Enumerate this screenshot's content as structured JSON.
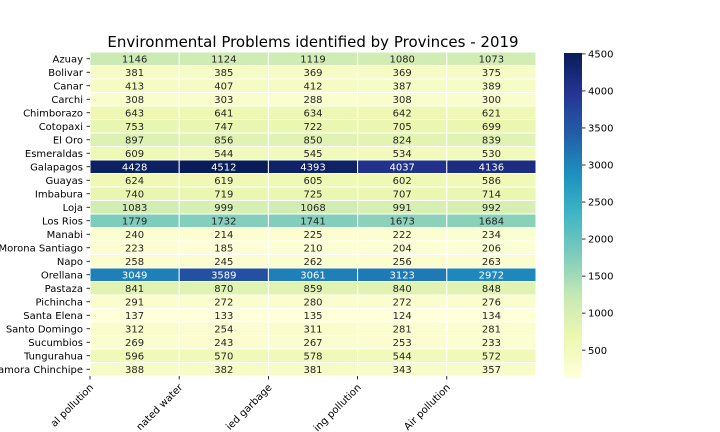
{
  "chart_data": {
    "type": "heatmap",
    "title": "Environmental Problems identified by Provinces - 2019",
    "columns": [
      "Visual pollution",
      "Contaminated water",
      "Accumulated garbage",
      "Noise/Smoking pollution",
      "Air pollution"
    ],
    "column_labels_visible": [
      "al pollution",
      "nated water",
      "ied garbage",
      "ing pollution",
      "Air pollution"
    ],
    "rows": [
      "Azuay",
      "Bolivar",
      "Canar",
      "Carchi",
      "Chimborazo",
      "Cotopaxi",
      "El Oro",
      "Esmeraldas",
      "Galapagos",
      "Guayas",
      "Imbabura",
      "Loja",
      "Los Rios",
      "Manabi",
      "Morona Santiago",
      "Napo",
      "Orellana",
      "Pastaza",
      "Pichincha",
      "Santa Elena",
      "Santo Domingo",
      "Sucumbios",
      "Tungurahua",
      "amora Chinchipe"
    ],
    "values": [
      [
        1146,
        1124,
        1119,
        1080,
        1073
      ],
      [
        381,
        385,
        369,
        369,
        375
      ],
      [
        413,
        407,
        412,
        387,
        389
      ],
      [
        308,
        303,
        288,
        308,
        300
      ],
      [
        643,
        641,
        634,
        642,
        621
      ],
      [
        753,
        747,
        722,
        705,
        699
      ],
      [
        897,
        856,
        850,
        824,
        839
      ],
      [
        609,
        544,
        545,
        534,
        530
      ],
      [
        4428,
        4512,
        4393,
        4037,
        4136
      ],
      [
        624,
        619,
        605,
        602,
        586
      ],
      [
        740,
        719,
        725,
        707,
        714
      ],
      [
        1083,
        999,
        1068,
        991,
        992
      ],
      [
        1779,
        1732,
        1741,
        1673,
        1684
      ],
      [
        240,
        214,
        225,
        222,
        234
      ],
      [
        223,
        185,
        210,
        204,
        206
      ],
      [
        258,
        245,
        262,
        256,
        263
      ],
      [
        3049,
        3589,
        3061,
        3123,
        2972
      ],
      [
        841,
        870,
        859,
        840,
        848
      ],
      [
        291,
        272,
        280,
        272,
        276
      ],
      [
        137,
        133,
        135,
        124,
        134
      ],
      [
        312,
        254,
        311,
        281,
        281
      ],
      [
        269,
        243,
        267,
        253,
        233
      ],
      [
        596,
        570,
        578,
        544,
        572
      ],
      [
        388,
        382,
        381,
        343,
        357
      ]
    ],
    "colormap": "YlGnBu",
    "vmin": 124,
    "vmax": 4512,
    "colorbar_ticks": [
      500,
      1000,
      1500,
      2000,
      2500,
      3000,
      3500,
      4000,
      4500
    ],
    "colorbar_tick_labels": [
      "500",
      "1000",
      "1500",
      "2000",
      "2500",
      "3000",
      "3500",
      "4000",
      "4500"
    ]
  }
}
